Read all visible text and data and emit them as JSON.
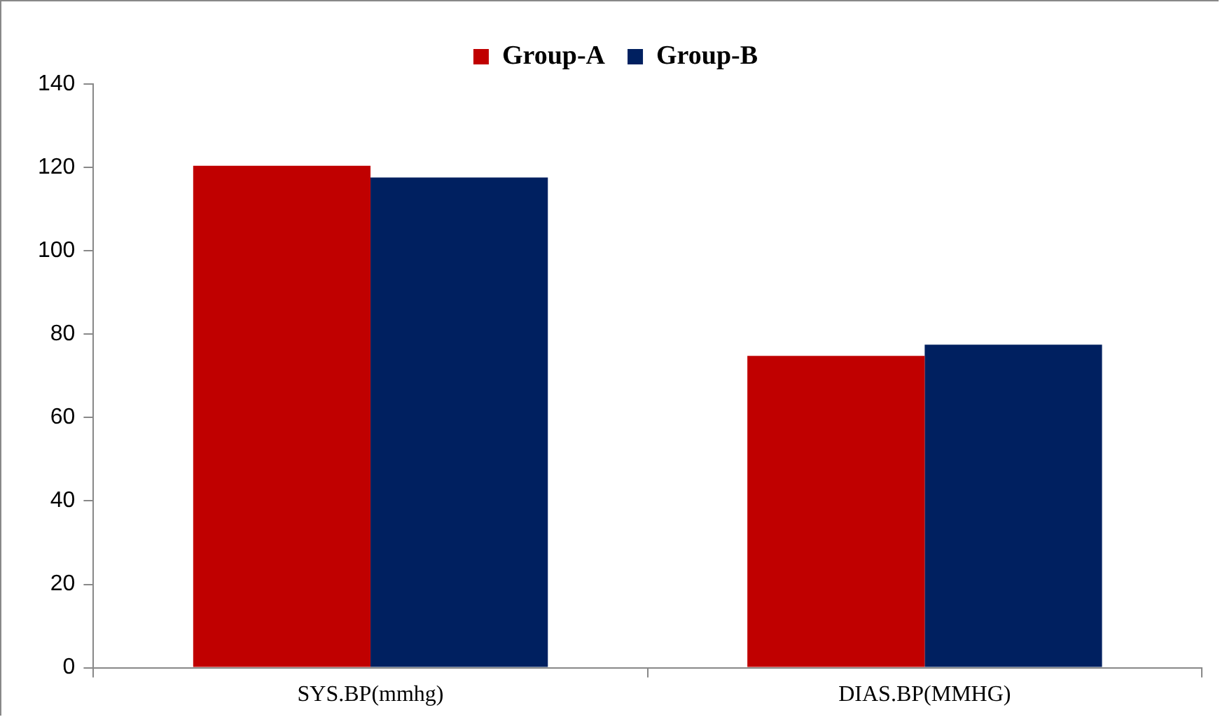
{
  "chart_data": {
    "type": "bar",
    "categories": [
      "SYS.BP(mmhg)",
      "DIAS.BP(MMHG)"
    ],
    "series": [
      {
        "name": "Group-A",
        "color": "#c00000",
        "values": [
          120.4,
          74.8
        ]
      },
      {
        "name": "Group-B",
        "color": "#002060",
        "values": [
          117.6,
          77.5
        ]
      }
    ],
    "ylim": [
      0,
      140
    ],
    "yticks": [
      0,
      20,
      40,
      60,
      80,
      100,
      120,
      140
    ],
    "grid": false,
    "legend": "top"
  }
}
